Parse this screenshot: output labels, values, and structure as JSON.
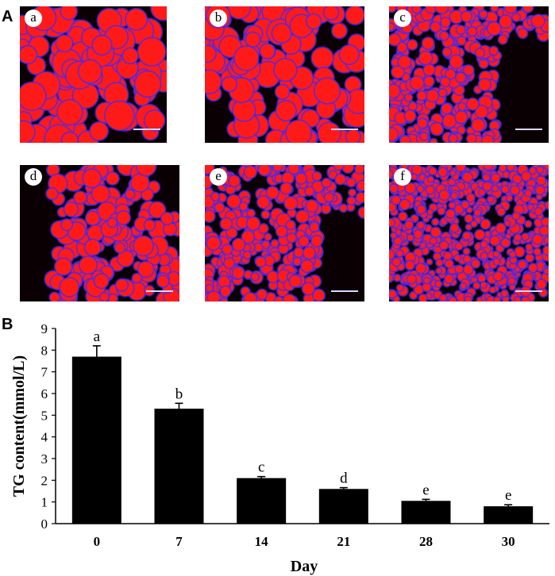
{
  "panels": {
    "A_label": "A",
    "B_label": "B"
  },
  "micrographs": [
    {
      "label": "a"
    },
    {
      "label": "b"
    },
    {
      "label": "c"
    },
    {
      "label": "d"
    },
    {
      "label": "e"
    },
    {
      "label": "f"
    }
  ],
  "colors": {
    "lipid": "#ff1a1a",
    "nuclei": "#3a2cff",
    "background": "#0a0004",
    "bar": "#000000"
  },
  "chart_data": {
    "type": "bar",
    "categories": [
      "0",
      "7",
      "14",
      "21",
      "28",
      "30"
    ],
    "values": [
      7.7,
      5.3,
      2.1,
      1.6,
      1.05,
      0.8
    ],
    "errors": [
      0.5,
      0.25,
      0.07,
      0.06,
      0.07,
      0.07
    ],
    "significance_letters": [
      "a",
      "b",
      "c",
      "d",
      "e",
      "e"
    ],
    "xlabel": "Day",
    "ylabel": "TG content(mmol/L)",
    "ylim": [
      0,
      9
    ],
    "yticks": [
      "0",
      "1",
      "2",
      "3",
      "4",
      "5",
      "6",
      "7",
      "8",
      "9"
    ],
    "grid": false
  }
}
